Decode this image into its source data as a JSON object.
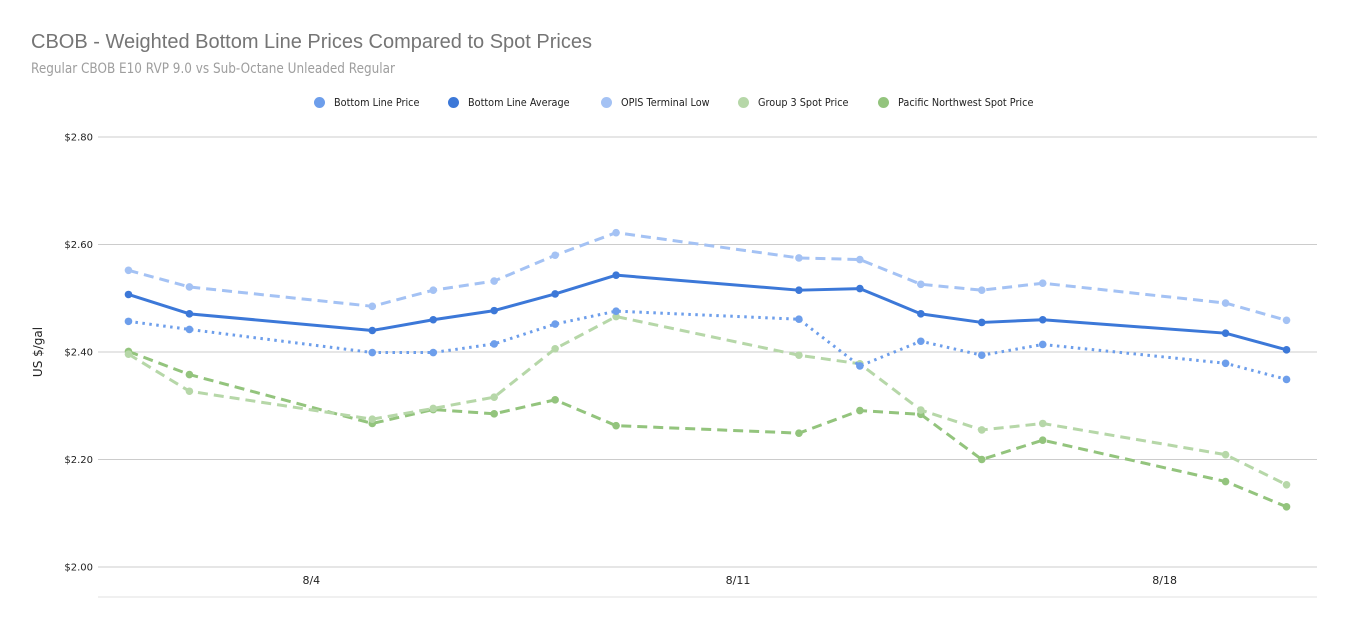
{
  "header": {
    "title": "CBOB - Weighted Bottom Line Prices Compared to Spot Prices",
    "subtitle": "Regular CBOB E10 RVP 9.0 vs Sub-Octane Unleaded Regular"
  },
  "legend": [
    {
      "label": "Bottom Line Price",
      "color": "#6d9eeb"
    },
    {
      "label": "Bottom Line Average",
      "color": "#3c78d8"
    },
    {
      "label": "OPIS Terminal Low",
      "color": "#a4c2f4"
    },
    {
      "label": "Group 3 Spot Price",
      "color": "#b6d7a8"
    },
    {
      "label": "Pacific Northwest Spot Price",
      "color": "#93c47d"
    }
  ],
  "chart_data": {
    "type": "line",
    "title": "CBOB - Weighted Bottom Line Prices Compared to Spot Prices",
    "subtitle": "Regular CBOB E10 RVP 9.0 vs Sub-Octane Unleaded Regular",
    "xlabel": "",
    "ylabel": "US $/gal",
    "ylim": [
      2.0,
      2.8
    ],
    "yticks": [
      "$2.00",
      "$2.20",
      "$2.40",
      "$2.60",
      "$2.80"
    ],
    "xtick_labels": [
      {
        "label": "8/4",
        "day": 4
      },
      {
        "label": "8/11",
        "day": 11
      },
      {
        "label": "8/18",
        "day": 18
      }
    ],
    "x_range_days": [
      0.5,
      20.5
    ],
    "grid": true,
    "legend_position": "top",
    "x": [
      "8/1",
      "8/2",
      "8/5",
      "8/6",
      "8/7",
      "8/8",
      "8/9",
      "8/12",
      "8/13",
      "8/14",
      "8/15",
      "8/16",
      "8/19",
      "8/20"
    ],
    "x_days": [
      1,
      2,
      5,
      6,
      7,
      8,
      9,
      12,
      13,
      14,
      15,
      16,
      19,
      20
    ],
    "series": [
      {
        "name": "Bottom Line Price",
        "color": "#6d9eeb",
        "style": "dotted",
        "values": [
          2.457,
          2.442,
          2.399,
          2.399,
          2.415,
          2.452,
          2.476,
          2.461,
          2.374,
          2.42,
          2.394,
          2.414,
          2.379,
          2.349
        ]
      },
      {
        "name": "Bottom Line Average",
        "color": "#3c78d8",
        "style": "solid",
        "values": [
          2.507,
          2.471,
          2.44,
          2.46,
          2.477,
          2.508,
          2.543,
          2.515,
          2.518,
          2.471,
          2.455,
          2.46,
          2.435,
          2.404
        ]
      },
      {
        "name": "OPIS Terminal Low",
        "color": "#a4c2f4",
        "style": "dashed",
        "values": [
          2.552,
          2.521,
          2.485,
          2.515,
          2.532,
          2.58,
          2.622,
          2.575,
          2.572,
          2.526,
          2.515,
          2.528,
          2.491,
          2.459
        ]
      },
      {
        "name": "Group 3 Spot Price",
        "color": "#b6d7a8",
        "style": "dashed",
        "values": [
          2.396,
          2.327,
          2.275,
          2.295,
          2.316,
          2.406,
          2.466,
          2.394,
          2.378,
          2.292,
          2.255,
          2.267,
          2.209,
          2.153
        ]
      },
      {
        "name": "Pacific Northwest Spot Price",
        "color": "#93c47d",
        "style": "dashed",
        "values": [
          2.401,
          2.358,
          2.267,
          2.293,
          2.285,
          2.311,
          2.263,
          2.249,
          2.291,
          2.284,
          2.2,
          2.236,
          2.159,
          2.112
        ]
      }
    ]
  }
}
